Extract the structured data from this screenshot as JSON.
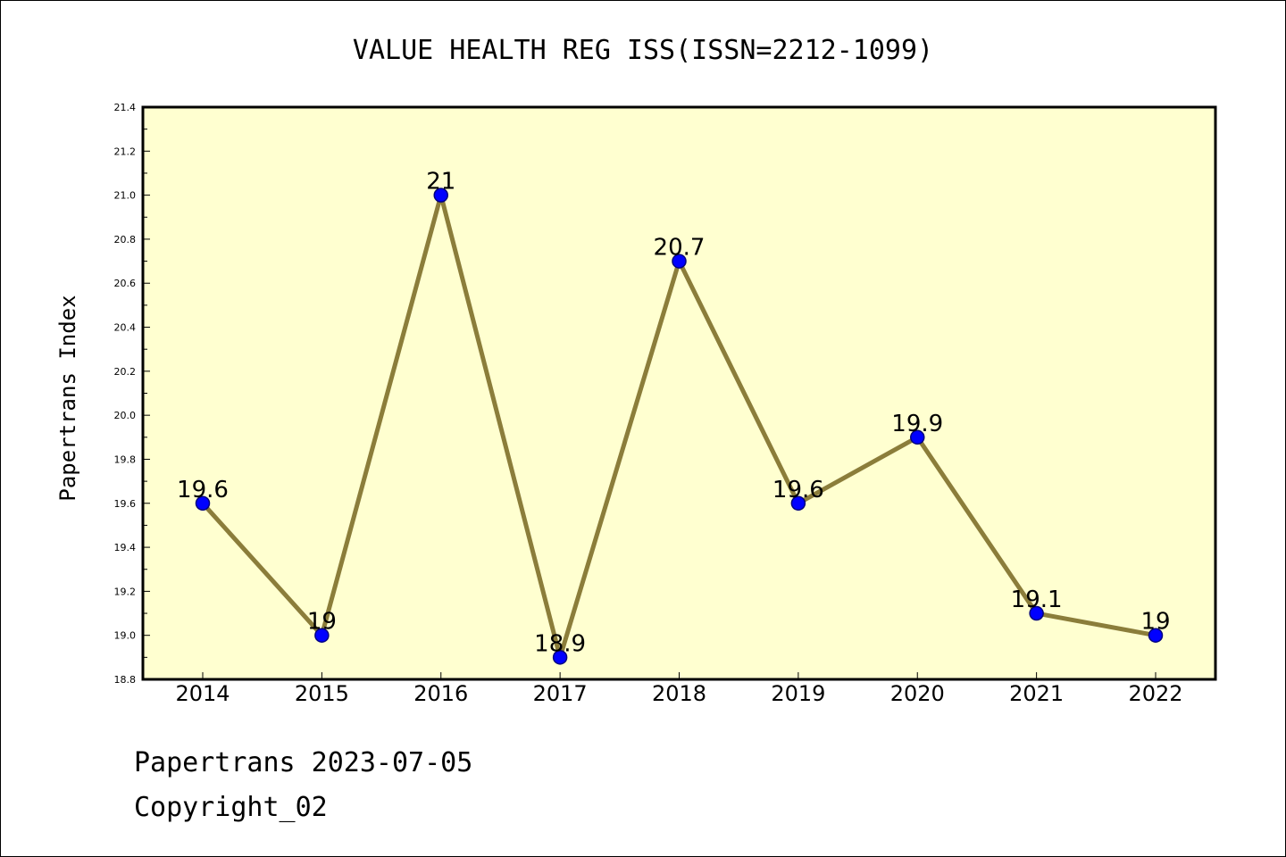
{
  "chart_data": {
    "type": "line",
    "title": "VALUE HEALTH REG ISS(ISSN=2212-1099)",
    "xlabel": "",
    "ylabel": "Papertrans Index",
    "categories": [
      "2014",
      "2015",
      "2016",
      "2017",
      "2018",
      "2019",
      "2020",
      "2021",
      "2022"
    ],
    "values": [
      19.6,
      19,
      21,
      18.9,
      20.7,
      19.6,
      19.9,
      19.1,
      19
    ],
    "data_labels": [
      "19.6",
      "19",
      "21",
      "18.9",
      "20.7",
      "19.6",
      "19.9",
      "19.1",
      "19"
    ],
    "ylim": [
      18.8,
      21.4
    ],
    "yticks": [
      "18.8",
      "19.0",
      "19.2",
      "19.4",
      "19.6",
      "19.8",
      "20.0",
      "20.2",
      "20.4",
      "20.6",
      "20.8",
      "21.0",
      "21.2",
      "21.4"
    ],
    "grid": false,
    "legend": "none",
    "colors": {
      "plot_background": "#ffffd0",
      "line": "#8b7d3a",
      "marker_fill": "#0000ff",
      "marker_edge": "#000080"
    }
  },
  "footer": {
    "date_line": "Papertrans 2023-07-05",
    "copyright": "Copyright_02"
  }
}
